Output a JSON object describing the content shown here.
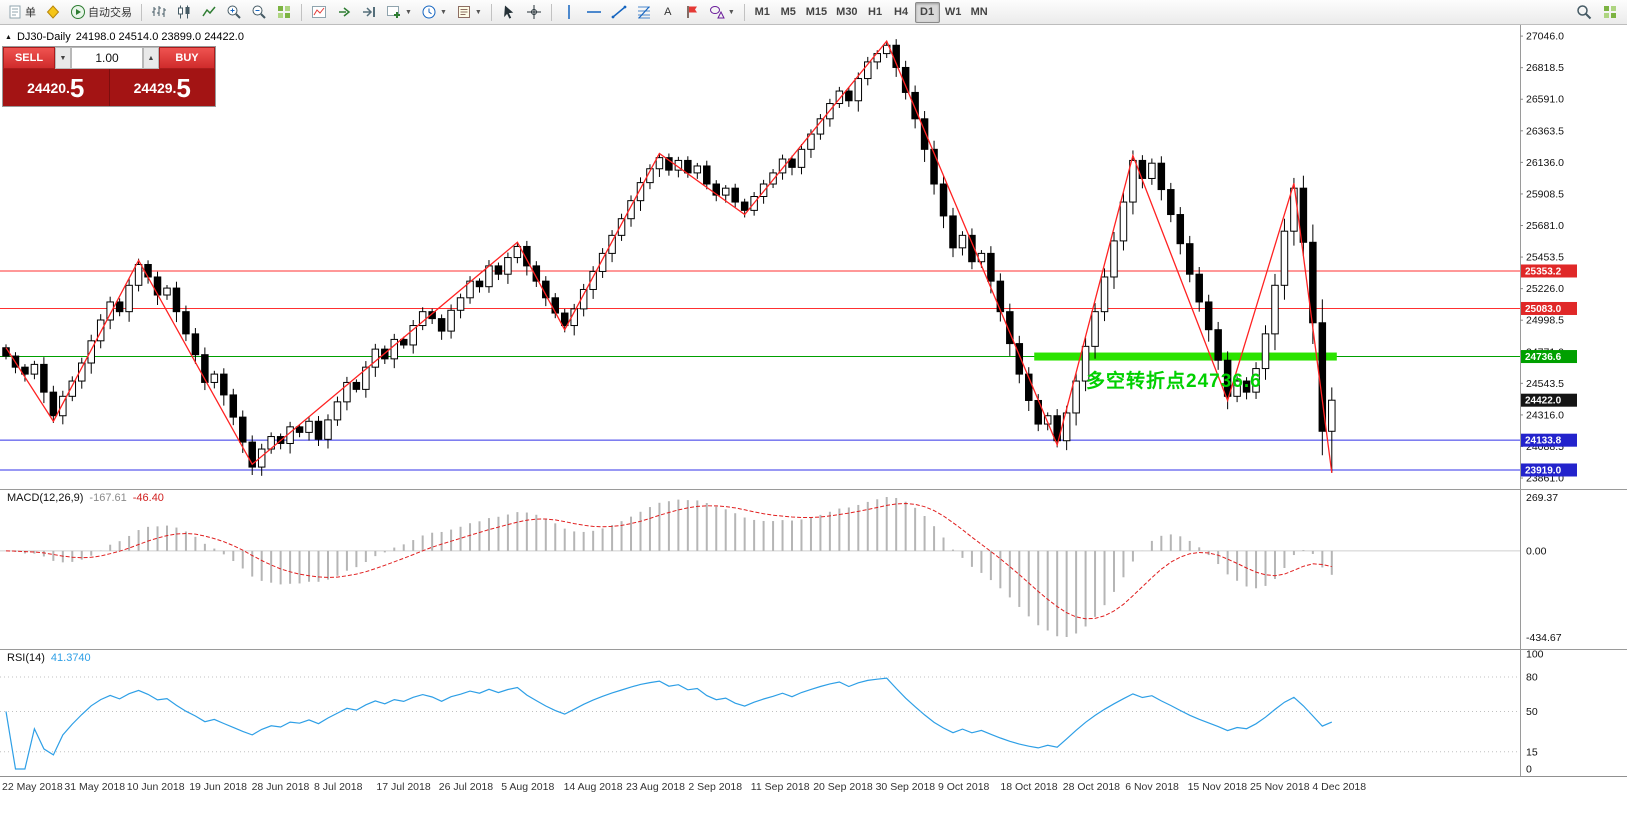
{
  "glyphs": {
    "caret_down": "▼",
    "caret_up": "▲",
    "collapse_arrow": "▲"
  },
  "toolbar": {
    "items": [
      {
        "name": "new-order-button",
        "label": "单",
        "icon": "doc"
      },
      {
        "name": "deposit-button",
        "icon": "diamond"
      },
      {
        "name": "autotrading-button",
        "label": "自动交易",
        "icon": "play"
      },
      {
        "sep": true
      },
      {
        "name": "bar-chart-button",
        "icon": "bars"
      },
      {
        "name": "candlestick-chart-button",
        "icon": "candles"
      },
      {
        "name": "line-chart-button",
        "icon": "linechart"
      },
      {
        "name": "zoom-in-button",
        "icon": "zoom-in"
      },
      {
        "name": "zoom-out-button",
        "icon": "zoom-out"
      },
      {
        "name": "tile-windows-button",
        "icon": "grid"
      },
      {
        "sep": true
      },
      {
        "name": "indicators-list-button",
        "icon": "indicator"
      },
      {
        "name": "auto-scroll-button",
        "icon": "scroll"
      },
      {
        "name": "chart-shift-button",
        "icon": "shift"
      },
      {
        "name": "new-chart-button",
        "icon": "plus",
        "dropdown": true
      },
      {
        "name": "periods-button",
        "icon": "clock",
        "dropdown": true
      },
      {
        "name": "templates-button",
        "icon": "template",
        "dropdown": true
      },
      {
        "sep": true
      },
      {
        "name": "cursor-button",
        "icon": "cursor"
      },
      {
        "name": "crosshair-button",
        "icon": "crosshair"
      },
      {
        "sep": true
      },
      {
        "name": "vertical-line-button",
        "icon": "vline"
      },
      {
        "name": "horizontal-line-button",
        "icon": "hline"
      },
      {
        "name": "trendline-button",
        "icon": "trendline"
      },
      {
        "name": "fibonacci-button",
        "icon": "fibo"
      },
      {
        "name": "text-label-button",
        "label": "A"
      },
      {
        "name": "arrow-objects-button",
        "icon": "flag"
      },
      {
        "name": "shapes-button",
        "icon": "shapes",
        "dropdown": true
      },
      {
        "sep": true
      }
    ],
    "timeframes": [
      "M1",
      "M5",
      "M15",
      "M30",
      "H1",
      "H4",
      "D1",
      "W1",
      "MN"
    ],
    "active_timeframe": "D1",
    "right_items": [
      {
        "name": "search-button",
        "icon": "search"
      },
      {
        "name": "new-window-button",
        "icon": "grid"
      }
    ]
  },
  "symbol_header": {
    "symbol": "DJ30-Daily",
    "ohlc": "24198.0 24514.0 23899.0 24422.0"
  },
  "trade_panel": {
    "sell_label": "SELL",
    "buy_label": "BUY",
    "volume": "1.00",
    "sell_price": "24420.",
    "sell_price_big": "5",
    "buy_price": "24429.",
    "buy_price_big": "5"
  },
  "annotation": {
    "text": "多空转折点24736.6",
    "color": "#00d000"
  },
  "price_axis": {
    "labels": [
      27046.0,
      26818.5,
      26591.0,
      26363.5,
      26136.0,
      25908.5,
      25681.0,
      25453.5,
      25226.0,
      24998.5,
      24771.0,
      24543.5,
      24316.0,
      24088.5,
      23861.0
    ],
    "tags": [
      {
        "text": "25353.2",
        "price": 25353.2,
        "bg": "#e02828"
      },
      {
        "text": "25083.0",
        "price": 25083.0,
        "bg": "#e02828"
      },
      {
        "text": "24736.6",
        "price": 24736.6,
        "bg": "#00a000"
      },
      {
        "text": "24422.0",
        "price": 24422.0,
        "bg": "#141414"
      },
      {
        "text": "24133.8",
        "price": 24133.8,
        "bg": "#2323cc"
      },
      {
        "text": "23919.0",
        "price": 23919.0,
        "bg": "#2323cc"
      }
    ]
  },
  "macd": {
    "name": "MACD(12,26,9)",
    "main_value": "-167.61",
    "signal_value": "-46.40",
    "axis_labels": [
      "269.37",
      "0.00",
      "-434.67"
    ],
    "params": {
      "fast": 12,
      "slow": 26,
      "signal": 9
    }
  },
  "rsi": {
    "name": "RSI(14)",
    "value": "41.3740",
    "axis_labels": [
      "100",
      "80",
      "50",
      "15",
      "0"
    ],
    "levels": [
      80,
      50,
      15
    ],
    "period": 14
  },
  "date_axis": [
    "22 May 2018",
    "31 May 2018",
    "10 Jun 2018",
    "19 Jun 2018",
    "28 Jun 2018",
    "8 Jul 2018",
    "17 Jul 2018",
    "26 Jul 2018",
    "5 Aug 2018",
    "14 Aug 2018",
    "23 Aug 2018",
    "2 Sep 2018",
    "11 Sep 2018",
    "20 Sep 2018",
    "30 Sep 2018",
    "9 Oct 2018",
    "18 Oct 2018",
    "28 Oct 2018",
    "6 Nov 2018",
    "15 Nov 2018",
    "25 Nov 2018",
    "4 Dec 2018"
  ],
  "chart_data": {
    "type": "candlestick",
    "symbol": "DJ30",
    "timeframe": "Daily",
    "last_candle": {
      "open": 24198.0,
      "high": 24514.0,
      "low": 23899.0,
      "close": 24422.0
    },
    "price_range": {
      "min": 23782,
      "max": 27126
    },
    "closes": [
      24740,
      24660,
      24610,
      24680,
      24480,
      24310,
      24450,
      24560,
      24690,
      24850,
      25000,
      25130,
      25060,
      25250,
      25400,
      25310,
      25180,
      25230,
      25060,
      24900,
      24750,
      24550,
      24610,
      24460,
      24300,
      24120,
      23940,
      24070,
      24160,
      24110,
      24230,
      24190,
      24270,
      24140,
      24280,
      24410,
      24550,
      24500,
      24660,
      24790,
      24720,
      24860,
      24820,
      24960,
      25060,
      25010,
      24920,
      25070,
      25160,
      25280,
      25240,
      25390,
      25330,
      25450,
      25530,
      25390,
      25280,
      25160,
      25050,
      24960,
      25080,
      25220,
      25350,
      25480,
      25610,
      25730,
      25860,
      25990,
      26090,
      26170,
      26080,
      26150,
      26060,
      26110,
      25980,
      25900,
      25950,
      25850,
      25790,
      25890,
      25980,
      26060,
      26160,
      26100,
      26230,
      26340,
      26450,
      26560,
      26650,
      26580,
      26740,
      26860,
      26920,
      26980,
      26820,
      26640,
      26450,
      26230,
      25980,
      25750,
      25520,
      25610,
      25420,
      25480,
      25280,
      25060,
      24830,
      24610,
      24420,
      24250,
      24310,
      24130,
      24330,
      24560,
      24810,
      25060,
      25310,
      25570,
      25850,
      26150,
      26020,
      26130,
      25940,
      25760,
      25550,
      25330,
      25130,
      24930,
      24710,
      24450,
      24560,
      24480,
      24650,
      24900,
      25250,
      25640,
      25950,
      25560,
      24980,
      24198,
      24422
    ],
    "zigzag_points": [
      [
        0,
        24800
      ],
      [
        5,
        24270
      ],
      [
        14,
        25430
      ],
      [
        26,
        23960
      ],
      [
        54,
        25560
      ],
      [
        59,
        24930
      ],
      [
        69,
        26200
      ],
      [
        78,
        25760
      ],
      [
        93,
        27010
      ],
      [
        111,
        24100
      ],
      [
        119,
        26185
      ],
      [
        129,
        24420
      ],
      [
        136,
        25985
      ],
      [
        140,
        23899
      ]
    ],
    "hlines": [
      {
        "price": 25353.2,
        "color": "#ff3030"
      },
      {
        "price": 25083.0,
        "color": "#ff3030"
      },
      {
        "price": 24736.6,
        "color": "#00a000"
      },
      {
        "price": 24133.8,
        "color": "#3030e8"
      },
      {
        "price": 23919.0,
        "color": "#3030e8"
      }
    ],
    "green_zone": {
      "price": 24736.6,
      "from_index": 109,
      "to_index": 140,
      "color": "#2be300"
    }
  }
}
